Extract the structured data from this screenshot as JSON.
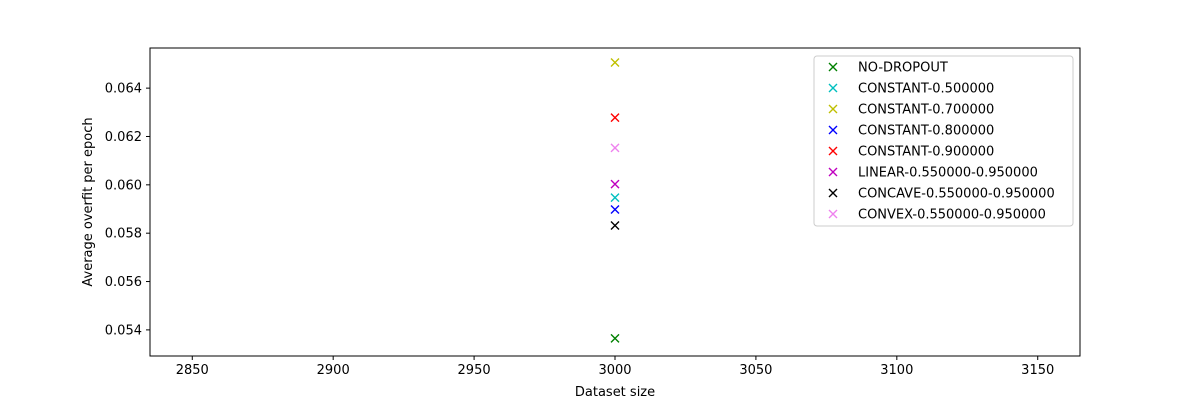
{
  "chart_data": {
    "type": "scatter",
    "title": "",
    "xlabel": "Dataset size",
    "ylabel": "Average overfit per epoch",
    "xlim": [
      2835,
      3165
    ],
    "ylim": [
      0.05292,
      0.06566
    ],
    "xticks": [
      2850,
      2900,
      2950,
      3000,
      3050,
      3100,
      3150
    ],
    "yticks": [
      0.054,
      0.056,
      0.058,
      0.06,
      0.062,
      0.064
    ],
    "xtick_labels": [
      "2850",
      "2900",
      "2950",
      "3000",
      "3050",
      "3100",
      "3150"
    ],
    "ytick_labels": [
      "0.054",
      "0.056",
      "0.058",
      "0.060",
      "0.062",
      "0.064"
    ],
    "grid": false,
    "legend_position": "top-right",
    "marker": "x",
    "series": [
      {
        "name": "NO-DROPOUT",
        "color": "#008000",
        "x": [
          3000
        ],
        "y": [
          0.05365
        ]
      },
      {
        "name": "CONSTANT-0.500000",
        "color": "#00bfbf",
        "x": [
          3000
        ],
        "y": [
          0.05947
        ]
      },
      {
        "name": "CONSTANT-0.700000",
        "color": "#bfbf00",
        "x": [
          3000
        ],
        "y": [
          0.06506
        ]
      },
      {
        "name": "CONSTANT-0.800000",
        "color": "#0000ff",
        "x": [
          3000
        ],
        "y": [
          0.05898
        ]
      },
      {
        "name": "CONSTANT-0.900000",
        "color": "#ff0000",
        "x": [
          3000
        ],
        "y": [
          0.06278
        ]
      },
      {
        "name": "LINEAR-0.550000-0.950000",
        "color": "#bf00bf",
        "x": [
          3000
        ],
        "y": [
          0.06003
        ]
      },
      {
        "name": "CONCAVE-0.550000-0.950000",
        "color": "#000000",
        "x": [
          3000
        ],
        "y": [
          0.05832
        ]
      },
      {
        "name": "CONVEX-0.550000-0.950000",
        "color": "#ee82ee",
        "x": [
          3000
        ],
        "y": [
          0.06153
        ]
      }
    ]
  }
}
